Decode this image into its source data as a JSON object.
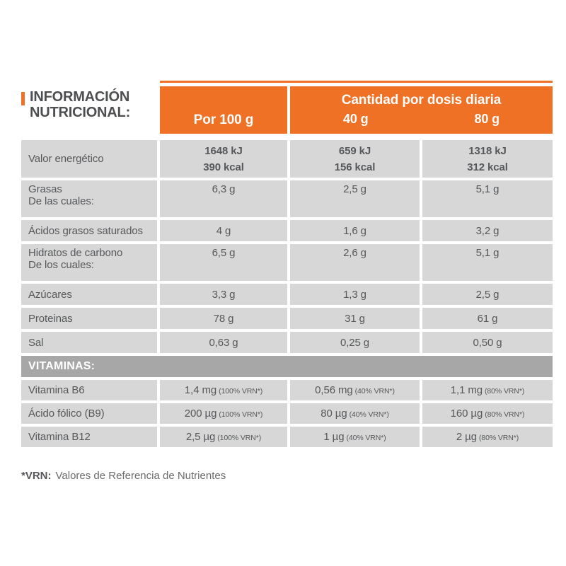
{
  "title": {
    "line1": "INFORMACIÓN",
    "line2": "NUTRICIONAL:"
  },
  "header": {
    "per100": "Por 100 g",
    "daily_dose_title": "Cantidad por dosis diaria",
    "dose_40": "40 g",
    "dose_80": "80 g"
  },
  "rows": [
    {
      "type": "energy",
      "label": "Valor energético",
      "sublabel": "",
      "cells": [
        [
          "1648 kJ",
          "390 kcal"
        ],
        [
          "659 kJ",
          "156 kcal"
        ],
        [
          "1318 kJ",
          "312 kcal"
        ]
      ]
    },
    {
      "type": "double",
      "label": "Grasas",
      "sublabel": "De las cuales:",
      "cells": [
        [
          "6,3 g"
        ],
        [
          "2,5 g"
        ],
        [
          "5,1 g"
        ]
      ]
    },
    {
      "type": "single",
      "label": "Ácidos grasos saturados",
      "sublabel": "",
      "cells": [
        [
          "4 g"
        ],
        [
          "1,6 g"
        ],
        [
          "3,2 g"
        ]
      ]
    },
    {
      "type": "double",
      "label": "Hidratos de carbono",
      "sublabel": "De los cuales:",
      "cells": [
        [
          "6,5 g"
        ],
        [
          "2,6 g"
        ],
        [
          "5,1 g"
        ]
      ]
    },
    {
      "type": "single",
      "label": "Azúcares",
      "sublabel": "",
      "cells": [
        [
          "3,3 g"
        ],
        [
          "1,3 g"
        ],
        [
          "2,5 g"
        ]
      ]
    },
    {
      "type": "single",
      "label": "Proteinas",
      "sublabel": "",
      "cells": [
        [
          "78 g"
        ],
        [
          "31 g"
        ],
        [
          "61 g"
        ]
      ]
    },
    {
      "type": "single",
      "label": "Sal",
      "sublabel": "",
      "cells": [
        [
          "0,63 g"
        ],
        [
          "0,25 g"
        ],
        [
          "0,50 g"
        ]
      ]
    }
  ],
  "vitamins_header": "VITAMINAS:",
  "vitamin_rows": [
    {
      "label": "Vitamina B6",
      "cells": [
        {
          "v": "1,4 mg",
          "note": "(100% VRN*)"
        },
        {
          "v": "0,56 mg",
          "note": "(40% VRN*)"
        },
        {
          "v": "1,1 mg",
          "note": "(80% VRN*)"
        }
      ]
    },
    {
      "label": "Ácido fólico (B9)",
      "cells": [
        {
          "v": "200 µg",
          "note": "(100% VRN*)"
        },
        {
          "v": "80 µg",
          "note": "(40% VRN*)"
        },
        {
          "v": "160 µg",
          "note": "(80% VRN*)"
        }
      ]
    },
    {
      "label": "Vitamina B12",
      "cells": [
        {
          "v": "2,5 µg",
          "note": "(100% VRN*)"
        },
        {
          "v": "1 µg",
          "note": "(40% VRN*)"
        },
        {
          "v": "2 µg",
          "note": "(80% VRN*)"
        }
      ]
    }
  ],
  "footnote": {
    "term": "*VRN:",
    "text": "Valores de Referencia de Nutrientes"
  },
  "colors": {
    "accent_orange": "#ef7125",
    "row_gray": "#d6d7d6",
    "section_gray": "#a7a7a7",
    "text_gray": "#57585b"
  }
}
